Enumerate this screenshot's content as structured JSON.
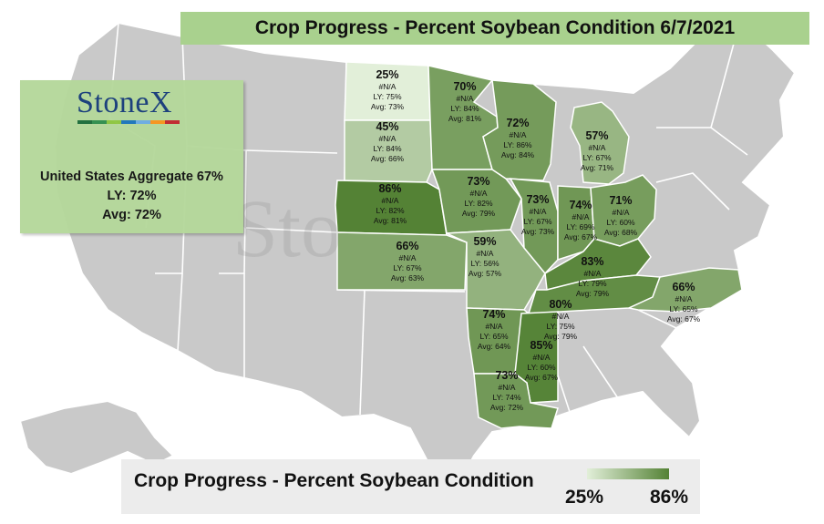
{
  "title": "Crop Progress - Percent Soybean Condition 6/7/2021",
  "logo": {
    "text": "StoneX",
    "bar_colors": [
      "#1d6d3b",
      "#2f8f4e",
      "#8dc63f",
      "#1c75bc",
      "#6cace4",
      "#f7941d",
      "#c1272d"
    ]
  },
  "aggregate": {
    "line1": "United States Aggregate 67%",
    "line2": "LY: 72%",
    "line3": "Avg: 72%"
  },
  "legend": {
    "title": "Crop Progress - Percent Soybean Condition",
    "low": "25%",
    "high": "86%",
    "low_color": "#e2efd9",
    "high_color": "#548235"
  },
  "states": [
    {
      "id": "ND",
      "pct": "25%",
      "now": "#N/A",
      "ly": "LY: 75%",
      "avg": "Avg: 73%",
      "value": 25
    },
    {
      "id": "SD",
      "pct": "45%",
      "now": "#N/A",
      "ly": "LY: 84%",
      "avg": "Avg: 66%",
      "value": 45
    },
    {
      "id": "NE",
      "pct": "86%",
      "now": "#N/A",
      "ly": "LY: 82%",
      "avg": "Avg: 81%",
      "value": 86
    },
    {
      "id": "KS",
      "pct": "66%",
      "now": "#N/A",
      "ly": "LY: 67%",
      "avg": "Avg: 63%",
      "value": 66
    },
    {
      "id": "MN",
      "pct": "70%",
      "now": "#N/A",
      "ly": "LY: 84%",
      "avg": "Avg: 81%",
      "value": 70
    },
    {
      "id": "IA",
      "pct": "73%",
      "now": "#N/A",
      "ly": "LY: 82%",
      "avg": "Avg: 79%",
      "value": 73
    },
    {
      "id": "MO",
      "pct": "59%",
      "now": "#N/A",
      "ly": "LY: 56%",
      "avg": "Avg: 57%",
      "value": 59
    },
    {
      "id": "WI",
      "pct": "72%",
      "now": "#N/A",
      "ly": "LY: 86%",
      "avg": "Avg: 84%",
      "value": 72
    },
    {
      "id": "IL",
      "pct": "73%",
      "now": "#N/A",
      "ly": "LY: 67%",
      "avg": "Avg: 73%",
      "value": 73
    },
    {
      "id": "IN",
      "pct": "74%",
      "now": "#N/A",
      "ly": "LY: 69%",
      "avg": "Avg: 67%",
      "value": 74
    },
    {
      "id": "MI",
      "pct": "57%",
      "now": "#N/A",
      "ly": "LY: 67%",
      "avg": "Avg: 71%",
      "value": 57
    },
    {
      "id": "OH",
      "pct": "71%",
      "now": "#N/A",
      "ly": "LY: 60%",
      "avg": "Avg: 68%",
      "value": 71
    },
    {
      "id": "KY",
      "pct": "83%",
      "now": "#N/A",
      "ly": "LY: 79%",
      "avg": "Avg: 79%",
      "value": 83
    },
    {
      "id": "TN",
      "pct": "80%",
      "now": "#N/A",
      "ly": "LY: 75%",
      "avg": "Avg: 79%",
      "value": 80
    },
    {
      "id": "NC",
      "pct": "66%",
      "now": "#N/A",
      "ly": "LY: 65%",
      "avg": "Avg: 67%",
      "value": 66
    },
    {
      "id": "AR",
      "pct": "74%",
      "now": "#N/A",
      "ly": "LY: 65%",
      "avg": "Avg: 64%",
      "value": 74
    },
    {
      "id": "MS",
      "pct": "85%",
      "now": "#N/A",
      "ly": "LY: 60%",
      "avg": "Avg: 67%",
      "value": 85
    },
    {
      "id": "LA",
      "pct": "73%",
      "now": "#N/A",
      "ly": "LY: 74%",
      "avg": "Avg: 72%",
      "value": 73
    }
  ],
  "watermark": "Sto"
}
